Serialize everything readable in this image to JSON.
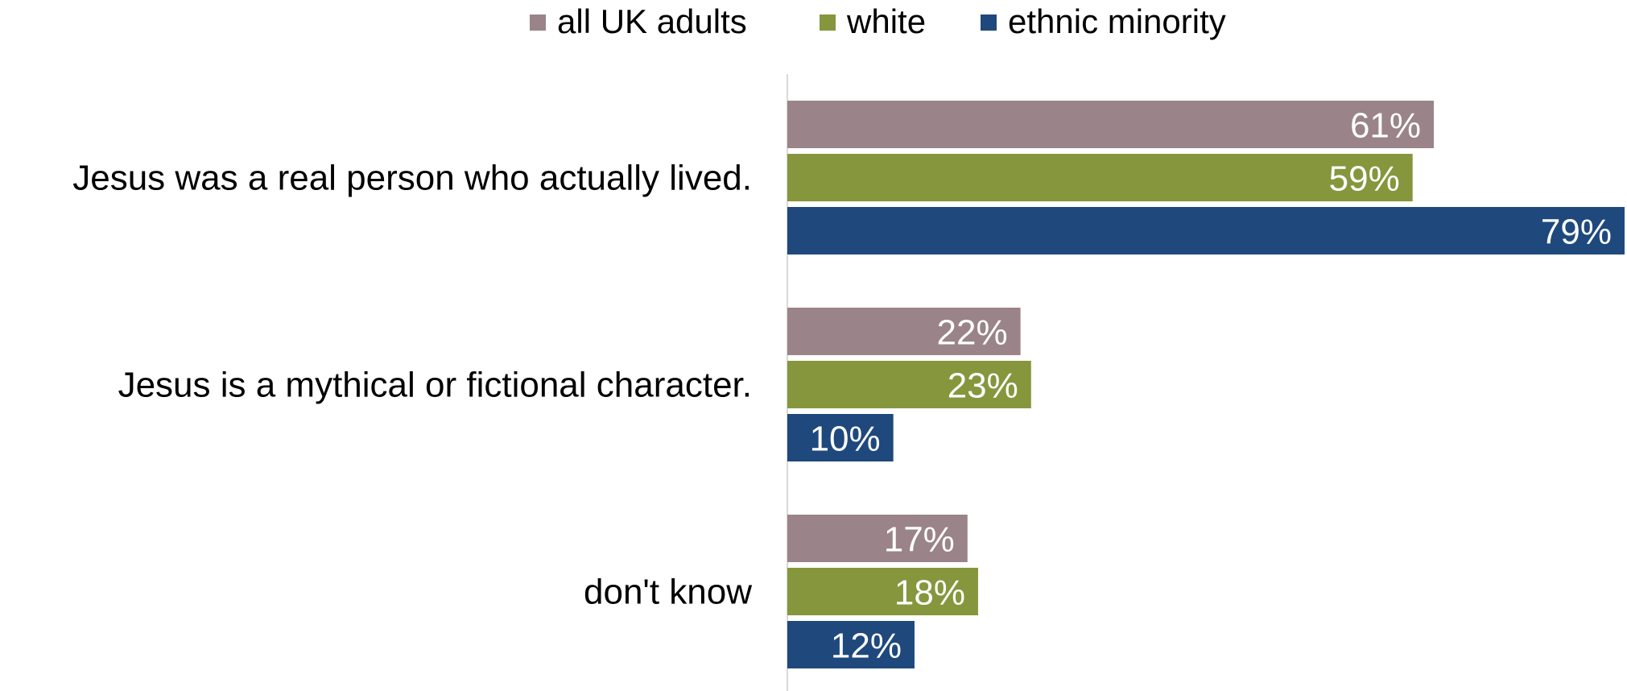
{
  "chart_data": {
    "type": "bar",
    "orientation": "horizontal",
    "categories": [
      "Jesus was a real person who actually lived.",
      "Jesus is a mythical or fictional character.",
      "don't know"
    ],
    "series": [
      {
        "name": "all UK adults",
        "color": "#9a8489",
        "values": [
          61,
          22,
          17
        ]
      },
      {
        "name": "white",
        "color": "#86963d",
        "values": [
          59,
          23,
          18
        ]
      },
      {
        "name": "ethnic minority",
        "color": "#1f497d",
        "values": [
          79,
          10,
          12
        ]
      }
    ],
    "value_suffix": "%",
    "xlim": [
      0,
      79
    ],
    "legend_position": "top",
    "grid": false,
    "title": "",
    "xlabel": "",
    "ylabel": ""
  }
}
